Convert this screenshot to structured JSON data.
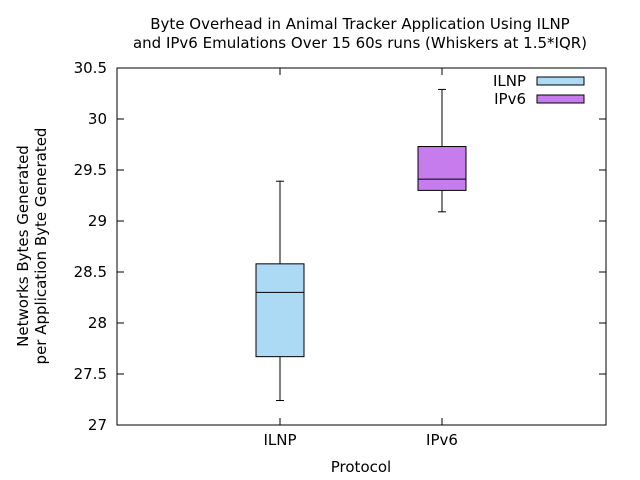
{
  "chart_data": {
    "type": "boxplot",
    "title": "Byte Overhead in Animal Tracker Application Using ILNP",
    "subtitle": "and IPv6 Emulations Over 15 60s runs (Whiskers at 1.5*IQR)",
    "xlabel": "Protocol",
    "ylabel_line1": "Networks Bytes Generated",
    "ylabel_line2": "per Application Byte Generated",
    "ylim": [
      27,
      30.5
    ],
    "yticks": [
      "27",
      "27.5",
      "28",
      "28.5",
      "29",
      "29.5",
      "30",
      "30.5"
    ],
    "grid": false,
    "legend_position": "top-right",
    "categories": [
      "ILNP",
      "IPv6"
    ],
    "series": [
      {
        "name": "ILNP",
        "color": "#acd9f3",
        "whisker_low": 27.24,
        "q1": 27.67,
        "median": 28.3,
        "q3": 28.58,
        "whisker_high": 29.39
      },
      {
        "name": "IPv6",
        "color": "#c77cee",
        "whisker_low": 29.09,
        "q1": 29.3,
        "median": 29.41,
        "q3": 29.73,
        "whisker_high": 30.29
      }
    ]
  }
}
